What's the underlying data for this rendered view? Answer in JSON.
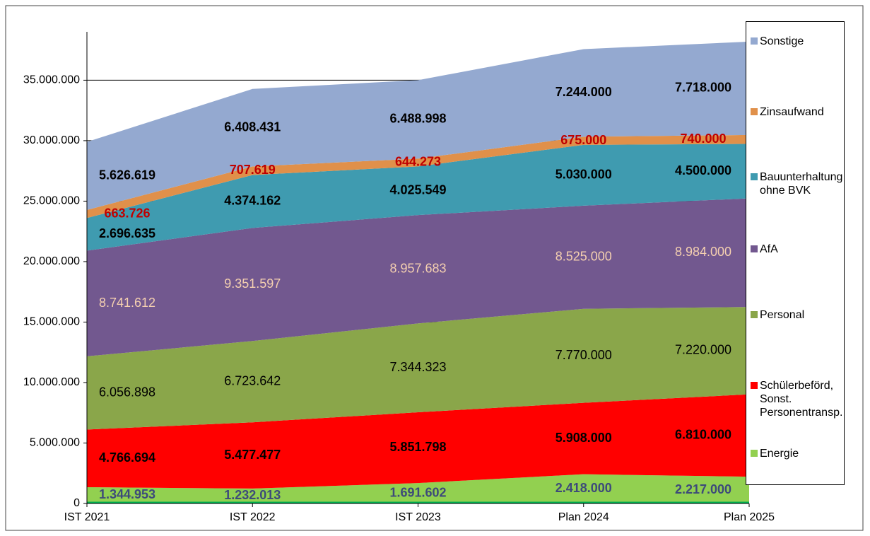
{
  "chart_data": {
    "type": "stacked_area",
    "categories": [
      "IST 2021",
      "IST 2022",
      "IST 2023",
      "Plan 2024",
      "Plan 2025"
    ],
    "ylim": [
      0,
      39000000
    ],
    "yticks": [
      0,
      {
        "value": 5000000,
        "label": "5.000.000"
      },
      {
        "value": 10000000,
        "label": "10.000.000"
      },
      {
        "value": 15000000,
        "label": "15.000.000"
      },
      {
        "value": 20000000,
        "label": "20.000.000"
      },
      {
        "value": 25000000,
        "label": "25.000.000"
      },
      {
        "value": 30000000,
        "label": "30.000.000"
      },
      {
        "value": 35000000,
        "label": "35.000.000"
      }
    ],
    "grid": true,
    "series": [
      {
        "name": "Energie",
        "color": "#92d050",
        "label_color": "#3d4a7a",
        "label_bold": true,
        "values": [
          1344953,
          1232013,
          1691602,
          2418000,
          2217000
        ],
        "value_labels": [
          "1.344.953",
          "1.232.013",
          "1.691.602",
          "2.418.000",
          "2.217.000"
        ]
      },
      {
        "name": "Schülerbeförd,\nSonst.\nPersonentransp.",
        "color": "#ff0000",
        "label_color": "#000000",
        "label_bold": true,
        "values": [
          4766694,
          5477477,
          5851798,
          5908000,
          6810000
        ],
        "value_labels": [
          "4.766.694",
          "5.477.477",
          "5.851.798",
          "5.908.000",
          "6.810.000"
        ]
      },
      {
        "name": "Personal",
        "color": "#8aa64a",
        "label_color": "#000000",
        "label_bold": false,
        "values": [
          6056898,
          6723642,
          7344323,
          7770000,
          7220000
        ],
        "value_labels": [
          "6.056.898",
          "6.723.642",
          "7.344.323",
          "7.770.000",
          "7.220.000"
        ]
      },
      {
        "name": "AfA",
        "color": "#72588f",
        "label_color": "#f5d0b0",
        "label_bold": false,
        "values": [
          8741612,
          9351597,
          8957683,
          8525000,
          8984000
        ],
        "value_labels": [
          "8.741.612",
          "9.351.597",
          "8.957.683",
          "8.525.000",
          "8.984.000"
        ]
      },
      {
        "name": "Bauunterhaltung\nohne BVK",
        "color": "#3f9bb0",
        "label_color": "#000000",
        "label_bold": true,
        "values": [
          2696635,
          4374162,
          4025549,
          5030000,
          4500000
        ],
        "value_labels": [
          "2.696.635",
          "4.374.162",
          "4.025.549",
          "5.030.000",
          "4.500.000"
        ]
      },
      {
        "name": "Zinsaufwand",
        "color": "#e0904a",
        "label_color": "#c00000",
        "label_bold": true,
        "values": [
          663726,
          707619,
          644273,
          675000,
          740000
        ],
        "value_labels": [
          "663.726",
          "707.619",
          "644.273",
          "675.000",
          "740.000"
        ]
      },
      {
        "name": "Sonstige",
        "color": "#94a9d0",
        "label_color": "#000000",
        "label_bold": true,
        "values": [
          5626619,
          6408431,
          6488998,
          7244000,
          7718000
        ],
        "value_labels": [
          "5.626.619",
          "6.408.431",
          "6.488.998",
          "7.244.000",
          "7.718.000"
        ]
      }
    ]
  }
}
